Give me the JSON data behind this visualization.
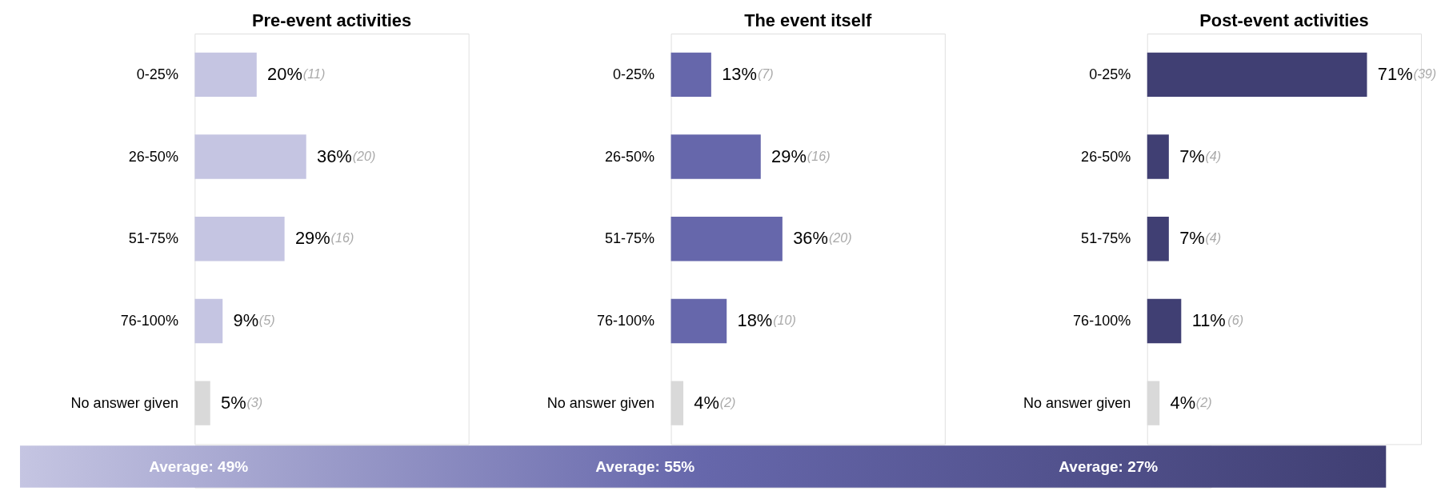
{
  "chart_data": [
    {
      "type": "bar",
      "orientation": "horizontal",
      "title": "Pre-event activities",
      "categories": [
        "0-25%",
        "26-50%",
        "51-75%",
        "76-100%",
        "No answer given"
      ],
      "values": [
        20,
        36,
        29,
        9,
        5
      ],
      "colors": [
        "#c5c5e2",
        "#c5c5e2",
        "#c5c5e2",
        "#c5c5e2",
        "#d9d9d9"
      ],
      "value_labels": [
        "20%",
        "36%",
        "29%",
        "9%",
        "5%"
      ],
      "annotations": [
        "Average: 49%",
        "(11)",
        "(20)",
        "(16)",
        "(5)",
        "(3)"
      ]
    },
    {
      "type": "bar",
      "orientation": "horizontal",
      "title": "The event itself",
      "categories": [
        "0-25%",
        "26-50%",
        "51-75%",
        "76-100%",
        "No answer given"
      ],
      "values": [
        13,
        29,
        36,
        18,
        4
      ],
      "colors": [
        "#6667ab",
        "#6667ab",
        "#6667ab",
        "#6667ab",
        "#d9d9d9"
      ],
      "value_labels": [
        "13%",
        "29%",
        "36%",
        "18%",
        "4%"
      ],
      "annotations": [
        "Average: 55%",
        "(7)",
        "(16)",
        "(20)",
        "(10)",
        "(2)"
      ]
    },
    {
      "type": "bar",
      "orientation": "horizontal",
      "title": "Post-event activities",
      "categories": [
        "0-25%",
        "26-50%",
        "51-75%",
        "76-100%",
        "No answer given"
      ],
      "values": [
        71,
        7,
        7,
        11,
        4
      ],
      "colors": [
        "#403f73",
        "#403f73",
        "#403f73",
        "#403f73",
        "#d9d9d9"
      ],
      "value_labels": [
        "71%",
        "7%",
        "7%",
        "11%",
        "4%"
      ],
      "annotations": [
        "Average: 27%",
        "(39)",
        "(4)",
        "(4)",
        "(6)",
        "(2)"
      ]
    }
  ]
}
